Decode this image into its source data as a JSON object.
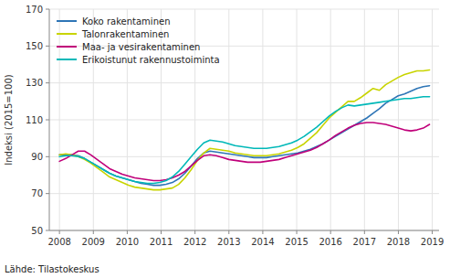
{
  "chart_data": {
    "type": "line",
    "ylabel": "Indeksi (2015=100)",
    "annotations": [
      "Lähde: Tilastokeskus"
    ],
    "x": [
      2008,
      2008.185085,
      2008.370169,
      2008.555254,
      2008.740339,
      2008.925424,
      2009.110508,
      2009.295593,
      2009.480678,
      2009.665763,
      2009.850847,
      2010.035932,
      2010.221017,
      2010.406102,
      2010.591186,
      2010.776271,
      2010.961356,
      2011.146441,
      2011.331525,
      2011.51661,
      2011.701695,
      2011.88678,
      2012.071864,
      2012.256949,
      2012.442034,
      2012.627119,
      2012.812203,
      2012.997288,
      2013.182373,
      2013.367458,
      2013.552542,
      2013.737627,
      2013.922712,
      2014.107797,
      2014.292881,
      2014.477966,
      2014.663051,
      2014.848136,
      2015.03322,
      2015.218305,
      2015.40339,
      2015.588475,
      2015.773559,
      2015.958644,
      2016.143729,
      2016.328814,
      2016.513898,
      2016.698983,
      2016.884068,
      2017.069153,
      2017.254237,
      2017.439322,
      2017.624407,
      2017.809492,
      2017.994576,
      2018.179661,
      2018.364746,
      2018.549831,
      2018.734915,
      2018.92
    ],
    "series": [
      {
        "name": "Koko rakentaminen",
        "color": "#2e75b6",
        "values": [
          91.0,
          91.2,
          91.0,
          90.5,
          89.0,
          87.0,
          85.0,
          83.0,
          81.0,
          79.5,
          78.5,
          77.5,
          76.5,
          75.5,
          75.0,
          74.5,
          74.5,
          75.0,
          76.0,
          78.0,
          81.0,
          85.0,
          89.0,
          92.0,
          93.0,
          92.5,
          92.0,
          91.5,
          91.0,
          90.5,
          90.0,
          89.5,
          89.5,
          89.5,
          90.0,
          90.5,
          91.0,
          91.5,
          92.0,
          93.0,
          94.0,
          95.5,
          97.0,
          99.0,
          101.0,
          103.0,
          105.0,
          107.0,
          109.0,
          111.0,
          113.5,
          116.0,
          119.0,
          121.0,
          123.0,
          124.0,
          125.5,
          127.0,
          128.0,
          128.5
        ]
      },
      {
        "name": "Talonrakentaminen",
        "color": "#c8d400",
        "values": [
          91.0,
          91.5,
          91.0,
          90.0,
          88.5,
          86.5,
          84.0,
          81.5,
          79.0,
          77.5,
          76.0,
          74.5,
          73.5,
          73.0,
          72.5,
          72.0,
          72.0,
          72.5,
          73.0,
          75.0,
          78.5,
          83.0,
          88.0,
          92.0,
          94.5,
          94.0,
          93.5,
          93.0,
          92.0,
          91.5,
          91.0,
          90.5,
          90.5,
          90.5,
          91.0,
          91.5,
          92.5,
          93.5,
          95.0,
          97.0,
          100.0,
          103.0,
          107.0,
          111.0,
          114.0,
          117.0,
          120.0,
          120.0,
          122.0,
          124.5,
          127.0,
          126.0,
          129.0,
          131.0,
          133.0,
          134.5,
          135.5,
          136.5,
          136.5,
          137.0
        ]
      },
      {
        "name": "Maa- ja vesirakentaminen",
        "color": "#c0007a",
        "values": [
          87.5,
          89.0,
          91.0,
          93.0,
          93.0,
          91.0,
          88.5,
          86.0,
          83.5,
          82.0,
          80.5,
          79.5,
          78.5,
          78.0,
          77.5,
          77.0,
          77.0,
          77.5,
          78.5,
          80.0,
          82.0,
          85.0,
          88.0,
          90.5,
          91.0,
          90.5,
          89.5,
          88.5,
          88.0,
          87.5,
          87.0,
          87.0,
          87.0,
          87.5,
          88.0,
          88.5,
          89.5,
          90.5,
          91.5,
          92.5,
          93.5,
          95.0,
          97.0,
          99.0,
          101.5,
          103.5,
          105.5,
          107.0,
          108.0,
          108.5,
          108.5,
          108.0,
          107.5,
          106.5,
          105.5,
          104.5,
          104.0,
          104.5,
          105.5,
          107.5
        ]
      },
      {
        "name": "Erikoistunut rakennustoiminta",
        "color": "#00b8b8",
        "values": [
          90.0,
          90.5,
          90.5,
          90.0,
          89.0,
          87.0,
          85.0,
          83.0,
          81.0,
          79.5,
          78.5,
          77.5,
          76.5,
          76.0,
          75.5,
          75.5,
          76.0,
          77.0,
          79.0,
          82.0,
          86.0,
          90.0,
          94.0,
          97.5,
          99.0,
          98.5,
          98.0,
          97.0,
          96.0,
          95.5,
          95.0,
          94.5,
          94.5,
          94.5,
          95.0,
          95.5,
          96.5,
          97.5,
          99.0,
          101.0,
          103.5,
          106.0,
          109.0,
          112.0,
          114.5,
          116.5,
          118.0,
          117.5,
          118.0,
          118.5,
          119.0,
          119.5,
          120.0,
          120.5,
          121.0,
          121.5,
          121.5,
          122.0,
          122.5,
          122.5
        ]
      }
    ],
    "xlim": [
      2007.7,
      2019.2
    ],
    "xticks": [
      2008,
      2009,
      2010,
      2011,
      2012,
      2013,
      2014,
      2015,
      2016,
      2017,
      2018,
      2019
    ],
    "ylim": [
      50,
      170
    ],
    "yticks": [
      50,
      70,
      90,
      110,
      130,
      150,
      170
    ],
    "grid": true,
    "legend": "upper left"
  }
}
